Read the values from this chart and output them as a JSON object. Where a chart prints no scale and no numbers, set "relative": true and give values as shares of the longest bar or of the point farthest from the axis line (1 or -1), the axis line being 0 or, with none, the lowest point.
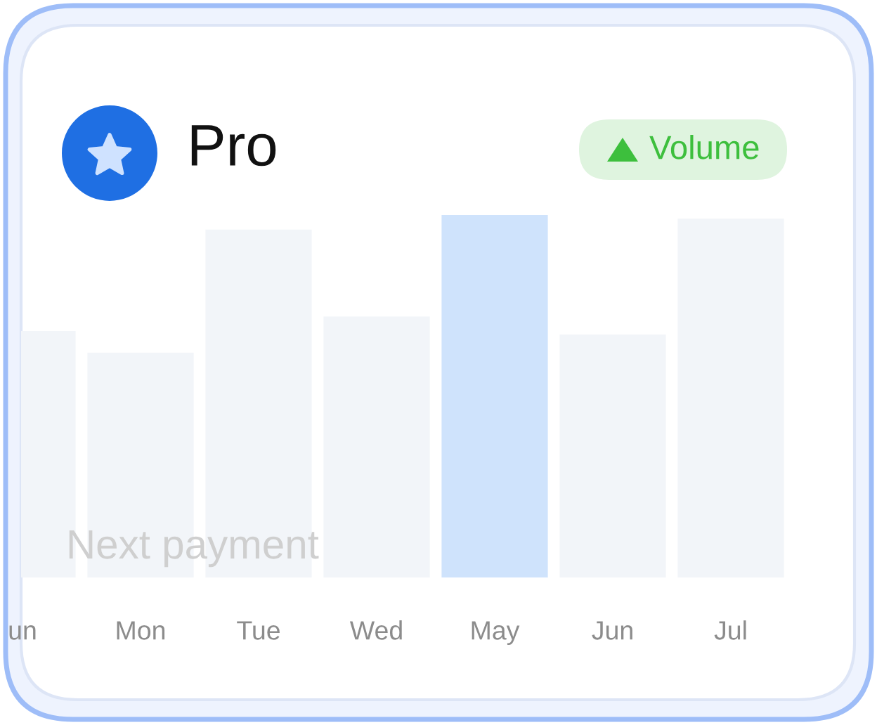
{
  "chart_data": {
    "type": "bar",
    "title": "Pro",
    "categories": [
      "un",
      "Mon",
      "Tue",
      "Wed",
      "May",
      "Jun",
      "Jul"
    ],
    "values": [
      0.68,
      0.62,
      0.96,
      0.72,
      1,
      0.67,
      0.99
    ],
    "colors": [
      "#f2f5f9",
      "#f2f5f9",
      "#f2f5f9",
      "#f2f5f9",
      "#cfe3fc",
      "#f2f5f9",
      "#f2f5f9"
    ],
    "relative": true,
    "annotations": [
      "Volume",
      "Next payment"
    ]
  }
}
